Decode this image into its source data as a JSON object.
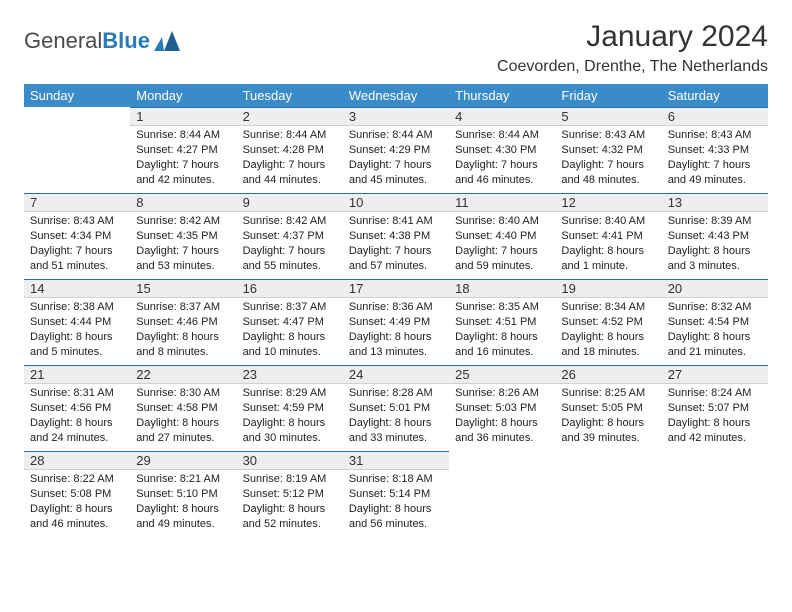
{
  "logo": {
    "text1": "General",
    "text2": "Blue"
  },
  "title": "January 2024",
  "location": "Coevorden, Drenthe, The Netherlands",
  "colors": {
    "header_bg": "#3a8cc8",
    "header_fg": "#ffffff",
    "daynum_bg": "#eceeef",
    "daynum_border_top": "#2a6fa0",
    "accent": "#2a7ab8"
  },
  "weekdays": [
    "Sunday",
    "Monday",
    "Tuesday",
    "Wednesday",
    "Thursday",
    "Friday",
    "Saturday"
  ],
  "start_offset": 1,
  "days": [
    {
      "n": 1,
      "sunrise": "8:44 AM",
      "sunset": "4:27 PM",
      "daylight": "7 hours and 42 minutes."
    },
    {
      "n": 2,
      "sunrise": "8:44 AM",
      "sunset": "4:28 PM",
      "daylight": "7 hours and 44 minutes."
    },
    {
      "n": 3,
      "sunrise": "8:44 AM",
      "sunset": "4:29 PM",
      "daylight": "7 hours and 45 minutes."
    },
    {
      "n": 4,
      "sunrise": "8:44 AM",
      "sunset": "4:30 PM",
      "daylight": "7 hours and 46 minutes."
    },
    {
      "n": 5,
      "sunrise": "8:43 AM",
      "sunset": "4:32 PM",
      "daylight": "7 hours and 48 minutes."
    },
    {
      "n": 6,
      "sunrise": "8:43 AM",
      "sunset": "4:33 PM",
      "daylight": "7 hours and 49 minutes."
    },
    {
      "n": 7,
      "sunrise": "8:43 AM",
      "sunset": "4:34 PM",
      "daylight": "7 hours and 51 minutes."
    },
    {
      "n": 8,
      "sunrise": "8:42 AM",
      "sunset": "4:35 PM",
      "daylight": "7 hours and 53 minutes."
    },
    {
      "n": 9,
      "sunrise": "8:42 AM",
      "sunset": "4:37 PM",
      "daylight": "7 hours and 55 minutes."
    },
    {
      "n": 10,
      "sunrise": "8:41 AM",
      "sunset": "4:38 PM",
      "daylight": "7 hours and 57 minutes."
    },
    {
      "n": 11,
      "sunrise": "8:40 AM",
      "sunset": "4:40 PM",
      "daylight": "7 hours and 59 minutes."
    },
    {
      "n": 12,
      "sunrise": "8:40 AM",
      "sunset": "4:41 PM",
      "daylight": "8 hours and 1 minute."
    },
    {
      "n": 13,
      "sunrise": "8:39 AM",
      "sunset": "4:43 PM",
      "daylight": "8 hours and 3 minutes."
    },
    {
      "n": 14,
      "sunrise": "8:38 AM",
      "sunset": "4:44 PM",
      "daylight": "8 hours and 5 minutes."
    },
    {
      "n": 15,
      "sunrise": "8:37 AM",
      "sunset": "4:46 PM",
      "daylight": "8 hours and 8 minutes."
    },
    {
      "n": 16,
      "sunrise": "8:37 AM",
      "sunset": "4:47 PM",
      "daylight": "8 hours and 10 minutes."
    },
    {
      "n": 17,
      "sunrise": "8:36 AM",
      "sunset": "4:49 PM",
      "daylight": "8 hours and 13 minutes."
    },
    {
      "n": 18,
      "sunrise": "8:35 AM",
      "sunset": "4:51 PM",
      "daylight": "8 hours and 16 minutes."
    },
    {
      "n": 19,
      "sunrise": "8:34 AM",
      "sunset": "4:52 PM",
      "daylight": "8 hours and 18 minutes."
    },
    {
      "n": 20,
      "sunrise": "8:32 AM",
      "sunset": "4:54 PM",
      "daylight": "8 hours and 21 minutes."
    },
    {
      "n": 21,
      "sunrise": "8:31 AM",
      "sunset": "4:56 PM",
      "daylight": "8 hours and 24 minutes."
    },
    {
      "n": 22,
      "sunrise": "8:30 AM",
      "sunset": "4:58 PM",
      "daylight": "8 hours and 27 minutes."
    },
    {
      "n": 23,
      "sunrise": "8:29 AM",
      "sunset": "4:59 PM",
      "daylight": "8 hours and 30 minutes."
    },
    {
      "n": 24,
      "sunrise": "8:28 AM",
      "sunset": "5:01 PM",
      "daylight": "8 hours and 33 minutes."
    },
    {
      "n": 25,
      "sunrise": "8:26 AM",
      "sunset": "5:03 PM",
      "daylight": "8 hours and 36 minutes."
    },
    {
      "n": 26,
      "sunrise": "8:25 AM",
      "sunset": "5:05 PM",
      "daylight": "8 hours and 39 minutes."
    },
    {
      "n": 27,
      "sunrise": "8:24 AM",
      "sunset": "5:07 PM",
      "daylight": "8 hours and 42 minutes."
    },
    {
      "n": 28,
      "sunrise": "8:22 AM",
      "sunset": "5:08 PM",
      "daylight": "8 hours and 46 minutes."
    },
    {
      "n": 29,
      "sunrise": "8:21 AM",
      "sunset": "5:10 PM",
      "daylight": "8 hours and 49 minutes."
    },
    {
      "n": 30,
      "sunrise": "8:19 AM",
      "sunset": "5:12 PM",
      "daylight": "8 hours and 52 minutes."
    },
    {
      "n": 31,
      "sunrise": "8:18 AM",
      "sunset": "5:14 PM",
      "daylight": "8 hours and 56 minutes."
    }
  ],
  "labels": {
    "sunrise": "Sunrise:",
    "sunset": "Sunset:",
    "daylight": "Daylight:"
  }
}
